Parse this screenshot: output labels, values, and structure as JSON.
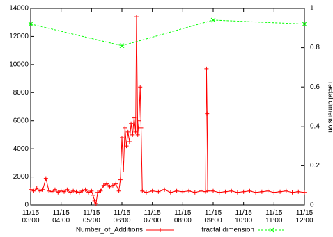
{
  "chart_data": {
    "type": "line",
    "y2label": "fractal dimension",
    "xlim": [
      3,
      12
    ],
    "xticks": [
      {
        "value": 3,
        "label": "11/15 03:00"
      },
      {
        "value": 4,
        "label": "11/15 04:00"
      },
      {
        "value": 5,
        "label": "11/15 05:00"
      },
      {
        "value": 6,
        "label": "11/15 06:00"
      },
      {
        "value": 7,
        "label": "11/15 07:00"
      },
      {
        "value": 8,
        "label": "11/15 08:00"
      },
      {
        "value": 9,
        "label": "11/15 09:00"
      },
      {
        "value": 10,
        "label": "11/15 10:00"
      },
      {
        "value": 11,
        "label": "11/15 11:00"
      },
      {
        "value": 12,
        "label": "11/15 12:00"
      }
    ],
    "ylim": [
      0,
      14000
    ],
    "yticks": [
      0,
      2000,
      4000,
      6000,
      8000,
      10000,
      12000,
      14000
    ],
    "y2lim": [
      0,
      1
    ],
    "y2ticks": [
      0,
      0.2,
      0.4,
      0.6,
      0.8,
      1
    ],
    "legend": "bottom",
    "series": [
      {
        "name": "Number_of_Additions",
        "color": "#ff0000",
        "marker": "plus",
        "dash": false,
        "x": [
          3.0,
          3.1,
          3.2,
          3.3,
          3.4,
          3.5,
          3.6,
          3.7,
          3.8,
          3.9,
          4.0,
          4.1,
          4.2,
          4.3,
          4.4,
          4.5,
          4.6,
          4.7,
          4.8,
          4.9,
          5.0,
          5.05,
          5.1,
          5.15,
          5.2,
          5.3,
          5.4,
          5.5,
          5.6,
          5.7,
          5.8,
          5.9,
          5.95,
          6.0,
          6.05,
          6.1,
          6.15,
          6.2,
          6.25,
          6.3,
          6.35,
          6.4,
          6.45,
          6.48,
          6.52,
          6.56,
          6.6,
          6.63,
          6.67,
          6.8,
          7.0,
          7.2,
          7.4,
          7.6,
          7.8,
          8.0,
          8.2,
          8.4,
          8.6,
          8.75,
          8.78,
          8.8,
          8.82,
          9.0,
          9.2,
          9.4,
          9.6,
          9.8,
          10.0,
          10.2,
          10.4,
          10.6,
          10.8,
          11.0,
          11.2,
          11.4,
          11.6,
          11.8,
          12.0
        ],
        "values": [
          1100,
          1000,
          1200,
          1000,
          1100,
          1900,
          1000,
          950,
          1100,
          900,
          1000,
          950,
          1100,
          900,
          1000,
          950,
          900,
          1000,
          1100,
          900,
          1000,
          700,
          300,
          100,
          900,
          1000,
          1400,
          1500,
          1300,
          1400,
          1500,
          1000,
          1800,
          4800,
          2500,
          5500,
          4200,
          5200,
          4500,
          5800,
          5000,
          6200,
          5200,
          13400,
          5000,
          6000,
          8400,
          5500,
          1000,
          900,
          1000,
          950,
          1100,
          900,
          1000,
          950,
          1000,
          900,
          1000,
          950,
          9700,
          6500,
          1000,
          1000,
          900,
          950,
          1000,
          900,
          950,
          1000,
          900,
          950,
          1000,
          900,
          950,
          1000,
          900,
          950,
          900
        ]
      },
      {
        "name": "fractal dimension",
        "color": "#00ff00",
        "marker": "cross",
        "dash": true,
        "axis": "y2",
        "x": [
          3,
          6,
          9,
          12
        ],
        "values": [
          0.92,
          0.81,
          0.94,
          0.92
        ]
      }
    ]
  }
}
